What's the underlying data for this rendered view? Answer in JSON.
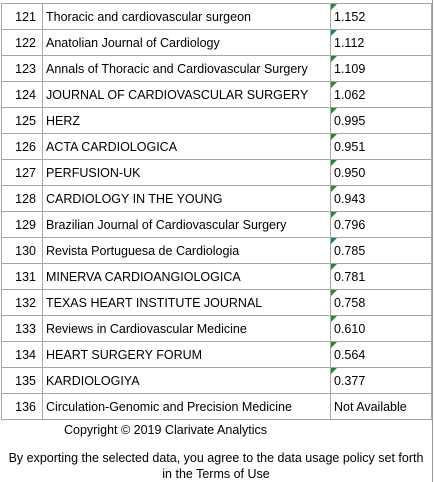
{
  "colors": {
    "grid_border": "#a6a6a6",
    "flag": "#1e8a3a"
  },
  "rows": [
    {
      "rank": "121",
      "title": "Thoracic and cardiovascular surgeon",
      "value": "1.152",
      "flag": true
    },
    {
      "rank": "122",
      "title": "Anatolian Journal of Cardiology",
      "value": "1.112",
      "flag": true
    },
    {
      "rank": "123",
      "title": "Annals of Thoracic and Cardiovascular Surgery",
      "value": "1.109",
      "flag": true
    },
    {
      "rank": "124",
      "title": "JOURNAL OF CARDIOVASCULAR SURGERY",
      "value": "1.062",
      "flag": true
    },
    {
      "rank": "125",
      "title": "HERZ",
      "value": "0.995",
      "flag": true
    },
    {
      "rank": "126",
      "title": "ACTA CARDIOLOGICA",
      "value": "0.951",
      "flag": true
    },
    {
      "rank": "127",
      "title": "PERFUSION-UK",
      "value": "0.950",
      "flag": true
    },
    {
      "rank": "128",
      "title": "CARDIOLOGY IN THE YOUNG",
      "value": "0.943",
      "flag": true
    },
    {
      "rank": "129",
      "title": "Brazilian Journal of Cardiovascular Surgery",
      "value": "0.796",
      "flag": true
    },
    {
      "rank": "130",
      "title": "Revista Portuguesa de Cardiologia",
      "value": "0.785",
      "flag": true
    },
    {
      "rank": "131",
      "title": "MINERVA CARDIOANGIOLOGICA",
      "value": "0.781",
      "flag": true
    },
    {
      "rank": "132",
      "title": "TEXAS HEART INSTITUTE JOURNAL",
      "value": "0.758",
      "flag": true
    },
    {
      "rank": "133",
      "title": "Reviews in Cardiovascular Medicine",
      "value": "0.610",
      "flag": true
    },
    {
      "rank": "134",
      "title": "HEART SURGERY FORUM",
      "value": "0.564",
      "flag": true
    },
    {
      "rank": "135",
      "title": "KARDIOLOGIYA",
      "value": "0.377",
      "flag": true
    },
    {
      "rank": "136",
      "title": "Circulation-Genomic and Precision Medicine",
      "value": "Not Available",
      "flag": false
    }
  ],
  "footer": {
    "copyright": "Copyright © 2019 Clarivate Analytics",
    "terms": "By exporting the selected data, you agree to the data usage policy set forth in the Terms of Use"
  }
}
